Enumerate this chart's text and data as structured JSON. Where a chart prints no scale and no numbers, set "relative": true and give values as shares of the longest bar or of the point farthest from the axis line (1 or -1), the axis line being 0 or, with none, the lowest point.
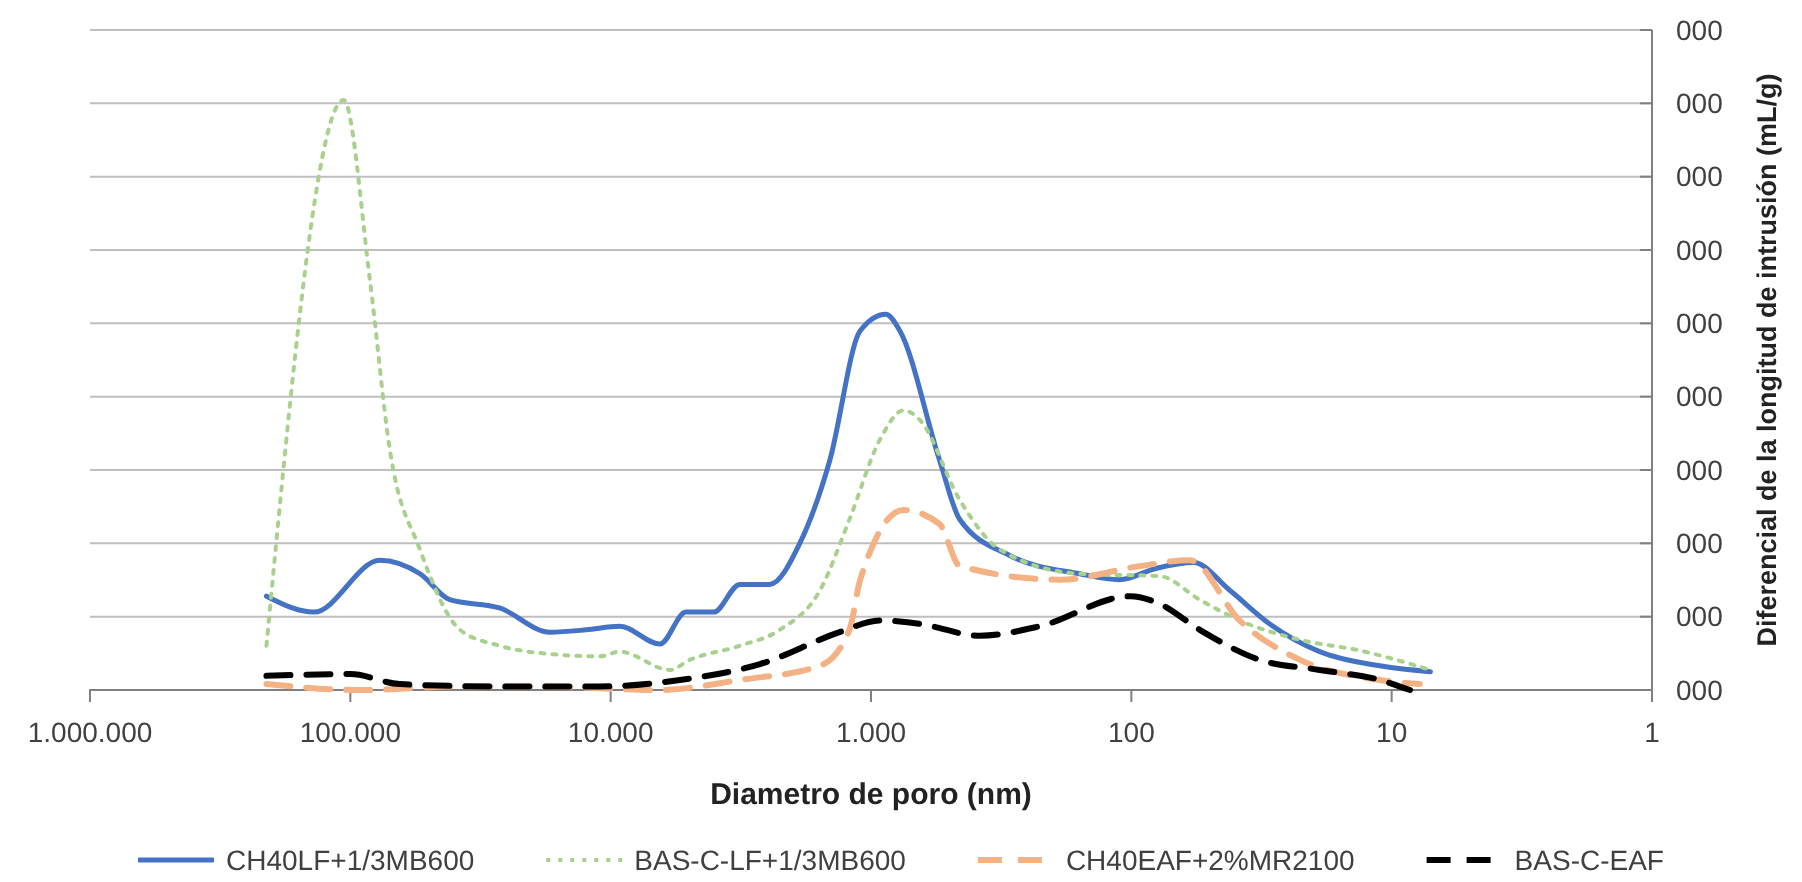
{
  "chart_data": {
    "type": "line",
    "relative": true,
    "xlabel": "Diametro de poro (nm)",
    "ylabel": "Diferencial de la longitud de intrusión (mL/g)",
    "annotations": [
      "000",
      "000",
      "000",
      "000",
      "000",
      "000",
      "000",
      "000",
      "000",
      "000"
    ],
    "log": "x",
    "xlim": [
      1000000,
      1
    ],
    "xticks": [
      {
        "value": 1000000,
        "label": "1.000.000"
      },
      {
        "value": 100000,
        "label": "100.000"
      },
      {
        "value": 10000,
        "label": "10.000"
      },
      {
        "value": 1000,
        "label": "1.000"
      },
      100,
      10,
      1
    ],
    "grid": "y",
    "legend": "bottom",
    "marker": "none",
    "series": [
      {
        "name": "CH40LF+1/3MB600",
        "color": "#4472c4",
        "line_style": "solid",
        "x": [
          210000,
          138000,
          77000,
          54000,
          41500,
          26700,
          17100,
          12400,
          9230,
          6470,
          5140,
          4020,
          3190,
          2450,
          1880,
          1440,
          1100,
          877,
          775,
          545,
          456,
          293,
          158,
          111,
          80.6,
          57.6,
          41.9,
          29.4,
          18.9,
          11.1,
          7.1
        ],
        "values": [
          0.159,
          0.132,
          0.22,
          0.197,
          0.153,
          0.139,
          0.098,
          0.102,
          0.108,
          0.078,
          0.132,
          0.132,
          0.179,
          0.179,
          0.248,
          0.389,
          0.609,
          0.637,
          0.609,
          0.389,
          0.289,
          0.228,
          0.197,
          0.187,
          0.206,
          0.216,
          0.169,
          0.112,
          0.065,
          0.041,
          0.031
        ]
      },
      {
        "name": "BAS-C-LF+1/3MB600",
        "color": "#a9d18e",
        "line_style": "dotted",
        "x": [
          210000,
          106000,
          84100,
          70500,
          54000,
          37900,
          26700,
          17100,
          11000,
          9230,
          5930,
          4970,
          3190,
          2240,
          1570,
          1210,
          925,
          749,
          650,
          456,
          320,
          158,
          77.8,
          54.6,
          38.4,
          22.5,
          13.3,
          7.1
        ],
        "values": [
          0.075,
          1,
          0.695,
          0.407,
          0.238,
          0.102,
          0.075,
          0.061,
          0.057,
          0.065,
          0.034,
          0.051,
          0.075,
          0.102,
          0.169,
          0.289,
          0.424,
          0.474,
          0.458,
          0.322,
          0.238,
          0.197,
          0.193,
          0.153,
          0.118,
          0.085,
          0.067,
          0.034
        ]
      },
      {
        "name": "CH40EAF+2%MR2100",
        "color": "#f4b183",
        "line_style": "dashed",
        "x": [
          210000,
          91900,
          37900,
          18700,
          6470,
          3190,
          1570,
          1210,
          1100,
          749,
          545,
          456,
          188,
          92.9,
          59.7,
          38.4,
          22.5,
          11.1,
          7.8
        ],
        "values": [
          0.01,
          0,
          0.006,
          0.006,
          0,
          0.017,
          0.041,
          0.102,
          0.187,
          0.305,
          0.281,
          0.21,
          0.187,
          0.21,
          0.22,
          0.118,
          0.051,
          0.017,
          0.01
        ]
      },
      {
        "name": "BAS-C-EAF",
        "color": "#000000",
        "line_style": "dashed",
        "x": [
          210000,
          100000,
          64600,
          26700,
          11000,
          5420,
          2670,
          1320,
          925,
          650,
          382,
          225,
          101,
          77.8,
          54.6,
          32.1,
          18.9,
          11.1,
          8.5
        ],
        "values": [
          0.024,
          0.027,
          0.01,
          0.006,
          0.006,
          0.017,
          0.044,
          0.098,
          0.118,
          0.112,
          0.092,
          0.108,
          0.159,
          0.146,
          0.102,
          0.051,
          0.034,
          0.017,
          0
        ]
      }
    ]
  }
}
